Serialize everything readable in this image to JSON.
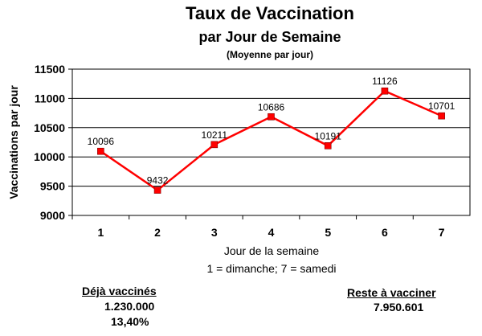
{
  "chart_data": {
    "type": "line",
    "title": "Taux de Vaccination",
    "subtitle": "par Jour de Semaine",
    "subtitle2": "(Moyenne par jour)",
    "xlabel": "Jour de la semaine",
    "xlabel_note": "1 = dimanche; 7 = samedi",
    "ylabel": "Vaccinations par jour",
    "categories": [
      "1",
      "2",
      "3",
      "4",
      "5",
      "6",
      "7"
    ],
    "values": [
      10096,
      9432,
      10211,
      10686,
      10191,
      11126,
      10701
    ],
    "data_labels": [
      "10096",
      "9432",
      "10211",
      "10686",
      "10191",
      "11126",
      "10701"
    ],
    "ylim": [
      9000,
      11500
    ],
    "yticks": [
      "9000",
      "9500",
      "10000",
      "10500",
      "11000",
      "11500"
    ],
    "grid": true,
    "line_color": "#ff0000",
    "marker_color": "#ff0000"
  },
  "stats": {
    "done_label": "Déjà vaccinés",
    "done_count": "1.230.000",
    "done_pct": "13,40%",
    "remaining_label": "Reste à vacciner",
    "remaining_count": "7.950.601"
  }
}
